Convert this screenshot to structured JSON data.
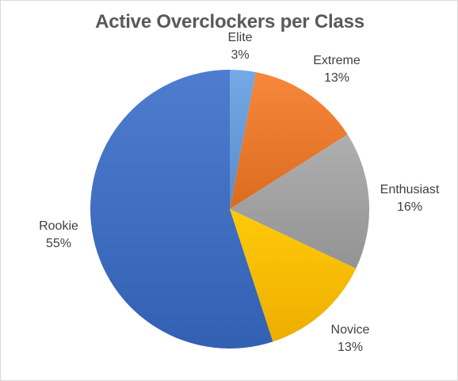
{
  "chart_data": {
    "type": "pie",
    "title": "Active Overclockers per Class",
    "labels_show_percent": true,
    "start_angle_deg": 0,
    "direction": "clockwise",
    "slices": [
      {
        "name": "Elite",
        "value": 3,
        "label_text": "3%",
        "color": "#6b9fdc"
      },
      {
        "name": "Extreme",
        "value": 13,
        "label_text": "13%",
        "color": "#ed7d31"
      },
      {
        "name": "Enthusiast",
        "value": 16,
        "label_text": "16%",
        "color": "#a5a5a5"
      },
      {
        "name": "Novice",
        "value": 13,
        "label_text": "13%",
        "color": "#ffc000"
      },
      {
        "name": "Rookie",
        "value": 55,
        "label_text": "55%",
        "color": "#4472c4"
      }
    ]
  }
}
